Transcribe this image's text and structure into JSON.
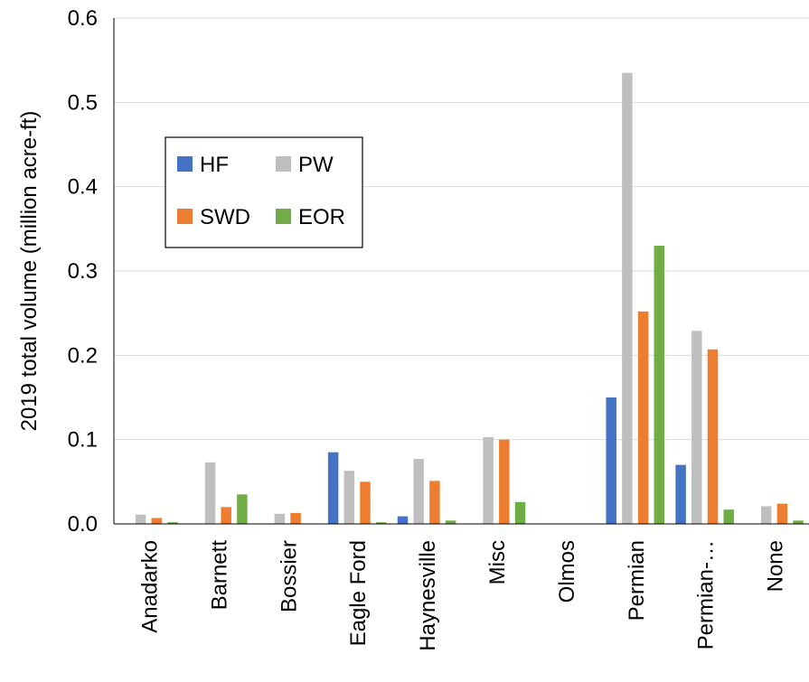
{
  "chart_data": {
    "type": "bar",
    "title": "",
    "xlabel": "",
    "ylabel": "2019 total volume (million acre-ft)",
    "ylim": [
      0,
      0.6
    ],
    "yticks": [
      "0.0",
      "0.1",
      "0.2",
      "0.3",
      "0.4",
      "0.5",
      "0.6"
    ],
    "grid": true,
    "legend_position": "upper-left",
    "categories": [
      "Anadarko",
      "Barnett",
      "Bossier",
      "Eagle Ford",
      "Haynesville",
      "Misc",
      "Olmos",
      "Permian",
      "Permian-…",
      "None"
    ],
    "series": [
      {
        "name": "HF",
        "color": "#4472C4",
        "values": [
          0.0,
          0.0,
          0.0,
          0.085,
          0.009,
          0.0,
          0.0,
          0.15,
          0.07,
          0.0
        ]
      },
      {
        "name": "PW",
        "color": "#BFBFBF",
        "values": [
          0.011,
          0.073,
          0.012,
          0.063,
          0.077,
          0.103,
          0.0,
          0.535,
          0.229,
          0.021
        ]
      },
      {
        "name": "SWD",
        "color": "#ED7D31",
        "values": [
          0.007,
          0.02,
          0.013,
          0.05,
          0.051,
          0.1,
          0.0,
          0.252,
          0.207,
          0.024
        ]
      },
      {
        "name": "EOR",
        "color": "#70AD47",
        "values": [
          0.002,
          0.035,
          0.0,
          0.002,
          0.004,
          0.026,
          0.0,
          0.33,
          0.017,
          0.004
        ]
      }
    ]
  }
}
